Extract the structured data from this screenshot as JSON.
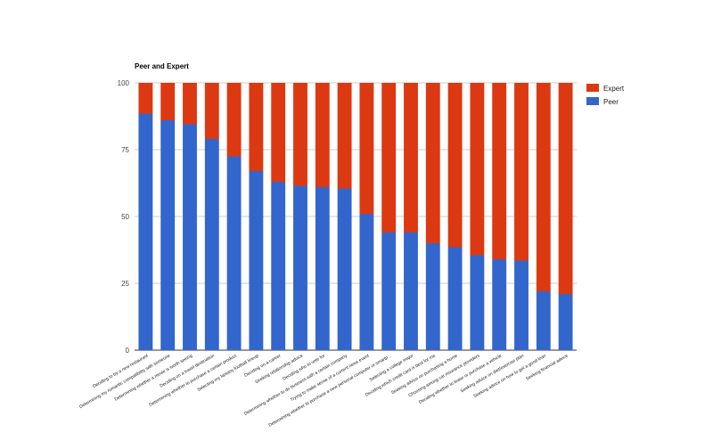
{
  "chart_data": {
    "type": "bar",
    "stacked": true,
    "title": "Peer and Expert",
    "xlabel": "",
    "ylabel": "",
    "ylim": [
      0,
      100
    ],
    "yticks": [
      "0",
      "25",
      "50",
      "75",
      "100"
    ],
    "grid": true,
    "legend_position": "top-right",
    "categories": [
      "Deciding to try a new restaurant",
      "Determining my romantic compatibility with someone",
      "Determining whether a movie is worth seeing",
      "Deciding on a travel destination",
      "Determining whether to purchase a certain product",
      "Selecting my fantasy football lineup",
      "Deciding on a career",
      "Seeking relationship advice",
      "Deciding who to vote for",
      "Determining whether to do business with a certain company",
      "Trying to make sense of a current news event",
      "Determining whether to purchase a new personal computer or smartp...",
      "Selecting a college major",
      "Deciding which credit card is best for me",
      "Seeking advice on purchasing a home",
      "Choosing among car insurance providers",
      "Deciding whether to lease or purchase a vehicle",
      "Seeking advice on diet/exercise plan",
      "Seeking advice on how to get a good loan",
      "Seeking financial advice"
    ],
    "series": [
      {
        "name": "Peer",
        "color": "#3366cc",
        "values": [
          88.5,
          86,
          84.5,
          79,
          72.5,
          67,
          63,
          61.5,
          61,
          60.5,
          51,
          44,
          44,
          40,
          38.5,
          35.5,
          34,
          33.5,
          22,
          21
        ]
      },
      {
        "name": "Expert",
        "color": "#dc3912",
        "values": [
          11.5,
          14,
          15.5,
          21,
          27.5,
          33,
          37,
          38.5,
          39,
          39.5,
          49,
          56,
          56,
          60,
          61.5,
          64.5,
          66,
          66.5,
          78,
          79
        ]
      }
    ],
    "legend_order": [
      "Expert",
      "Peer"
    ]
  }
}
